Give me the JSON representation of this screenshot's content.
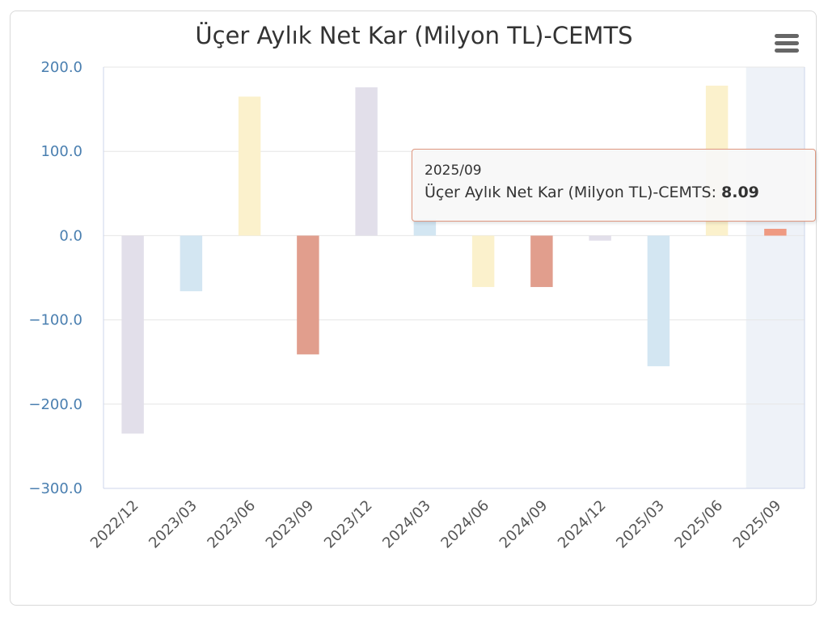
{
  "chart_data": {
    "type": "bar",
    "title": "Üçer Aylık Net Kar (Milyon TL)-CEMTS",
    "xlabel": "",
    "ylabel": "",
    "ylim": [
      -300,
      200
    ],
    "y_ticks": [
      "200.0",
      "100.0",
      "0.0",
      "−100.0",
      "−200.0",
      "−300.0"
    ],
    "y_tick_values": [
      200,
      100,
      0,
      -100,
      -200,
      -300
    ],
    "grid": true,
    "categories": [
      "2022/12",
      "2023/03",
      "2023/06",
      "2023/09",
      "2023/12",
      "2024/03",
      "2024/06",
      "2024/09",
      "2024/12",
      "2025/03",
      "2025/06",
      "2025/09"
    ],
    "values": [
      -235,
      -66,
      165,
      -141,
      176,
      20,
      -61,
      -61,
      -6,
      -155,
      178,
      8.09
    ],
    "bar_colors": [
      "#e2dfea",
      "#d3e6f2",
      "#fbf1cc",
      "#e19e8d",
      "#e2dfea",
      "#d3e6f2",
      "#fbf1cc",
      "#e19e8d",
      "#e2dfea",
      "#d3e6f2",
      "#fbf1cc",
      "#ef9a82"
    ],
    "highlight_index": 11,
    "highlight_band_color": "#eef2f8",
    "legend": "none"
  },
  "tooltip": {
    "header": "2025/09",
    "series_name": "Üçer Aylık Net Kar (Milyon TL)-CEMTS",
    "value": "8.09",
    "border_color": "#e09880"
  },
  "menu": {
    "icon": "hamburger-menu-icon",
    "color": "#666666"
  },
  "colors": {
    "axis_label": "#4a7fb0",
    "grid": "#e6e6e6",
    "axis_line": "#ccd6eb"
  }
}
